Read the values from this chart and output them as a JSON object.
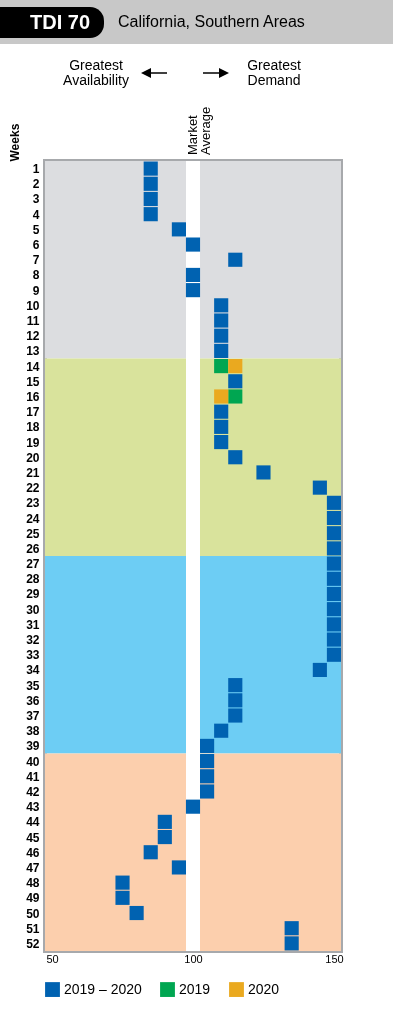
{
  "chart_data": {
    "type": "scatter",
    "orientation": "horizontal",
    "title": "TDI 70",
    "subtitle": "California, Southern Areas",
    "ylabel": "Weeks",
    "annotations": [
      "Greatest Availability",
      "Greatest Demand"
    ],
    "categories": [
      "1",
      "2",
      "3",
      "4",
      "5",
      "6",
      "7",
      "8",
      "9",
      "10",
      "11",
      "12",
      "13",
      "14",
      "15",
      "16",
      "17",
      "18",
      "19",
      "20",
      "21",
      "22",
      "23",
      "24",
      "25",
      "26",
      "27",
      "28",
      "29",
      "30",
      "31",
      "32",
      "33",
      "34",
      "35",
      "36",
      "37",
      "38",
      "39",
      "40",
      "41",
      "42",
      "43",
      "44",
      "45",
      "46",
      "47",
      "48",
      "49",
      "50",
      "51",
      "52"
    ],
    "series": [
      {
        "name": "2019 – 2020",
        "color": "#0062b1",
        "values": [
          85,
          85,
          85,
          85,
          95,
          100,
          115,
          100,
          100,
          110,
          110,
          110,
          110,
          null,
          115,
          null,
          110,
          110,
          110,
          115,
          125,
          145,
          150,
          150,
          150,
          150,
          150,
          150,
          150,
          150,
          150,
          150,
          150,
          145,
          115,
          115,
          115,
          110,
          105,
          105,
          105,
          105,
          100,
          90,
          90,
          85,
          95,
          75,
          75,
          80,
          135,
          135
        ]
      },
      {
        "name": "2019",
        "color": "#00a651",
        "values": [
          null,
          null,
          null,
          null,
          null,
          null,
          null,
          null,
          null,
          null,
          null,
          null,
          null,
          110,
          null,
          115,
          null,
          null,
          null,
          null,
          null,
          null,
          null,
          null,
          null,
          null,
          null,
          null,
          null,
          null,
          null,
          null,
          null,
          null,
          null,
          null,
          null,
          null,
          null,
          null,
          null,
          null,
          null,
          null,
          null,
          null,
          null,
          null,
          null,
          null,
          null,
          null
        ]
      },
      {
        "name": "2020",
        "color": "#eaa91f",
        "values": [
          null,
          null,
          null,
          null,
          null,
          null,
          null,
          null,
          null,
          null,
          null,
          null,
          null,
          115,
          null,
          110,
          null,
          null,
          null,
          null,
          null,
          null,
          null,
          null,
          null,
          null,
          null,
          null,
          null,
          null,
          null,
          null,
          null,
          null,
          null,
          null,
          null,
          null,
          null,
          null,
          null,
          null,
          null,
          null,
          null,
          null,
          null,
          null,
          null,
          null,
          null,
          null
        ]
      }
    ],
    "xlim": [
      47.5,
      152.5
    ],
    "xticks": [
      50,
      100,
      150
    ],
    "bands": [
      {
        "axis": "y",
        "from": "1",
        "to": "13",
        "color": "#dcdde0"
      },
      {
        "axis": "y",
        "from": "14",
        "to": "26",
        "color": "#d9e39c"
      },
      {
        "axis": "y",
        "from": "27",
        "to": "39",
        "color": "#6dcdf4"
      },
      {
        "axis": "y",
        "from": "40",
        "to": "52",
        "color": "#fccfad"
      }
    ],
    "ref_lines": [
      {
        "axis": "x",
        "value": 100,
        "label": "Market Average",
        "color": "#ffffff"
      }
    ],
    "marker": "square",
    "legend": "bottom"
  }
}
